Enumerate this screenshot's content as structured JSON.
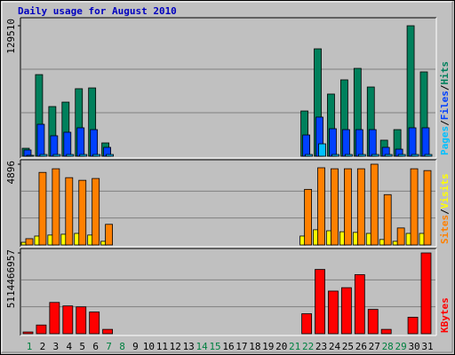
{
  "chart_data": [
    {
      "type": "bar",
      "title": "Daily usage for August 2010",
      "categories": [
        "1",
        "2",
        "3",
        "4",
        "5",
        "6",
        "7",
        "8",
        "9",
        "10",
        "11",
        "12",
        "13",
        "14",
        "15",
        "16",
        "17",
        "18",
        "19",
        "20",
        "21",
        "22",
        "23",
        "24",
        "25",
        "26",
        "27",
        "28",
        "29",
        "30",
        "31"
      ],
      "category_colors": [
        "#008040",
        "#000000",
        "#000000",
        "#000000",
        "#000000",
        "#000000",
        "#008040",
        "#008040",
        "#000000",
        "#000000",
        "#000000",
        "#000000",
        "#000000",
        "#008040",
        "#008040",
        "#000000",
        "#000000",
        "#000000",
        "#000000",
        "#000000",
        "#008040",
        "#008040",
        "#000000",
        "#000000",
        "#000000",
        "#000000",
        "#000000",
        "#008040",
        "#008040",
        "#000000",
        "#000000"
      ],
      "legend_separator": "/",
      "series": [
        {
          "name": "Hits",
          "color": "#00805c",
          "values": [
            7900,
            81000,
            49300,
            53700,
            67000,
            67800,
            13200,
            0,
            0,
            0,
            0,
            0,
            0,
            0,
            0,
            0,
            0,
            0,
            0,
            0,
            0,
            44900,
            106600,
            61700,
            75800,
            87200,
            68700,
            15900,
            26400,
            129510,
            83700
          ]
        },
        {
          "name": "Files",
          "color": "#0040ff",
          "values": [
            6200,
            31700,
            20300,
            23800,
            28200,
            26400,
            8800,
            0,
            0,
            0,
            0,
            0,
            0,
            0,
            0,
            0,
            0,
            0,
            0,
            0,
            0,
            21100,
            38800,
            27300,
            26400,
            26400,
            26400,
            8800,
            7000,
            28200,
            28200
          ]
        },
        {
          "name": "Pages",
          "color": "#00c0ff",
          "values": [
            900,
            1700,
            1700,
            1700,
            1700,
            1700,
            1700,
            0,
            0,
            0,
            0,
            0,
            0,
            0,
            0,
            0,
            0,
            0,
            0,
            0,
            0,
            1700,
            12300,
            1700,
            1700,
            1700,
            1700,
            1700,
            1700,
            1700,
            1700
          ]
        }
      ],
      "ylim": [
        0,
        129510
      ],
      "yticks": [
        129510
      ],
      "grid": true
    },
    {
      "type": "bar",
      "legend_separator": "/",
      "series": [
        {
          "name": "Visits",
          "color": "#ffff00",
          "values": [
            160,
            540,
            600,
            650,
            700,
            600,
            220,
            0,
            0,
            0,
            0,
            0,
            0,
            0,
            0,
            0,
            0,
            0,
            0,
            0,
            0,
            540,
            920,
            860,
            800,
            760,
            700,
            330,
            220,
            700,
            700
          ]
        },
        {
          "name": "Sites",
          "color": "#ff8000",
          "values": [
            380,
            4400,
            4620,
            4080,
            3920,
            4030,
            1250,
            0,
            0,
            0,
            0,
            0,
            0,
            0,
            0,
            0,
            0,
            0,
            0,
            0,
            0,
            3370,
            4680,
            4620,
            4620,
            4620,
            4896,
            3050,
            1030,
            4620,
            4510
          ]
        }
      ],
      "ylim": [
        0,
        4896
      ],
      "yticks": [
        4896
      ],
      "grid": true
    },
    {
      "type": "bar",
      "series": [
        {
          "name": "KBytes",
          "color": "#ff0000",
          "values": [
            110000000,
            550000000,
            1980000000,
            1760000000,
            1700000000,
            1375000000,
            275000000,
            0,
            0,
            0,
            0,
            0,
            0,
            0,
            0,
            0,
            0,
            0,
            0,
            0,
            0,
            1265000000,
            4070000000,
            2700000000,
            2915000000,
            3740000000,
            1540000000,
            275000000,
            0,
            1045000000,
            5114466957
          ]
        }
      ],
      "ylim": [
        0,
        5114466957
      ],
      "yticks": [
        5114466957
      ],
      "grid": true
    }
  ]
}
